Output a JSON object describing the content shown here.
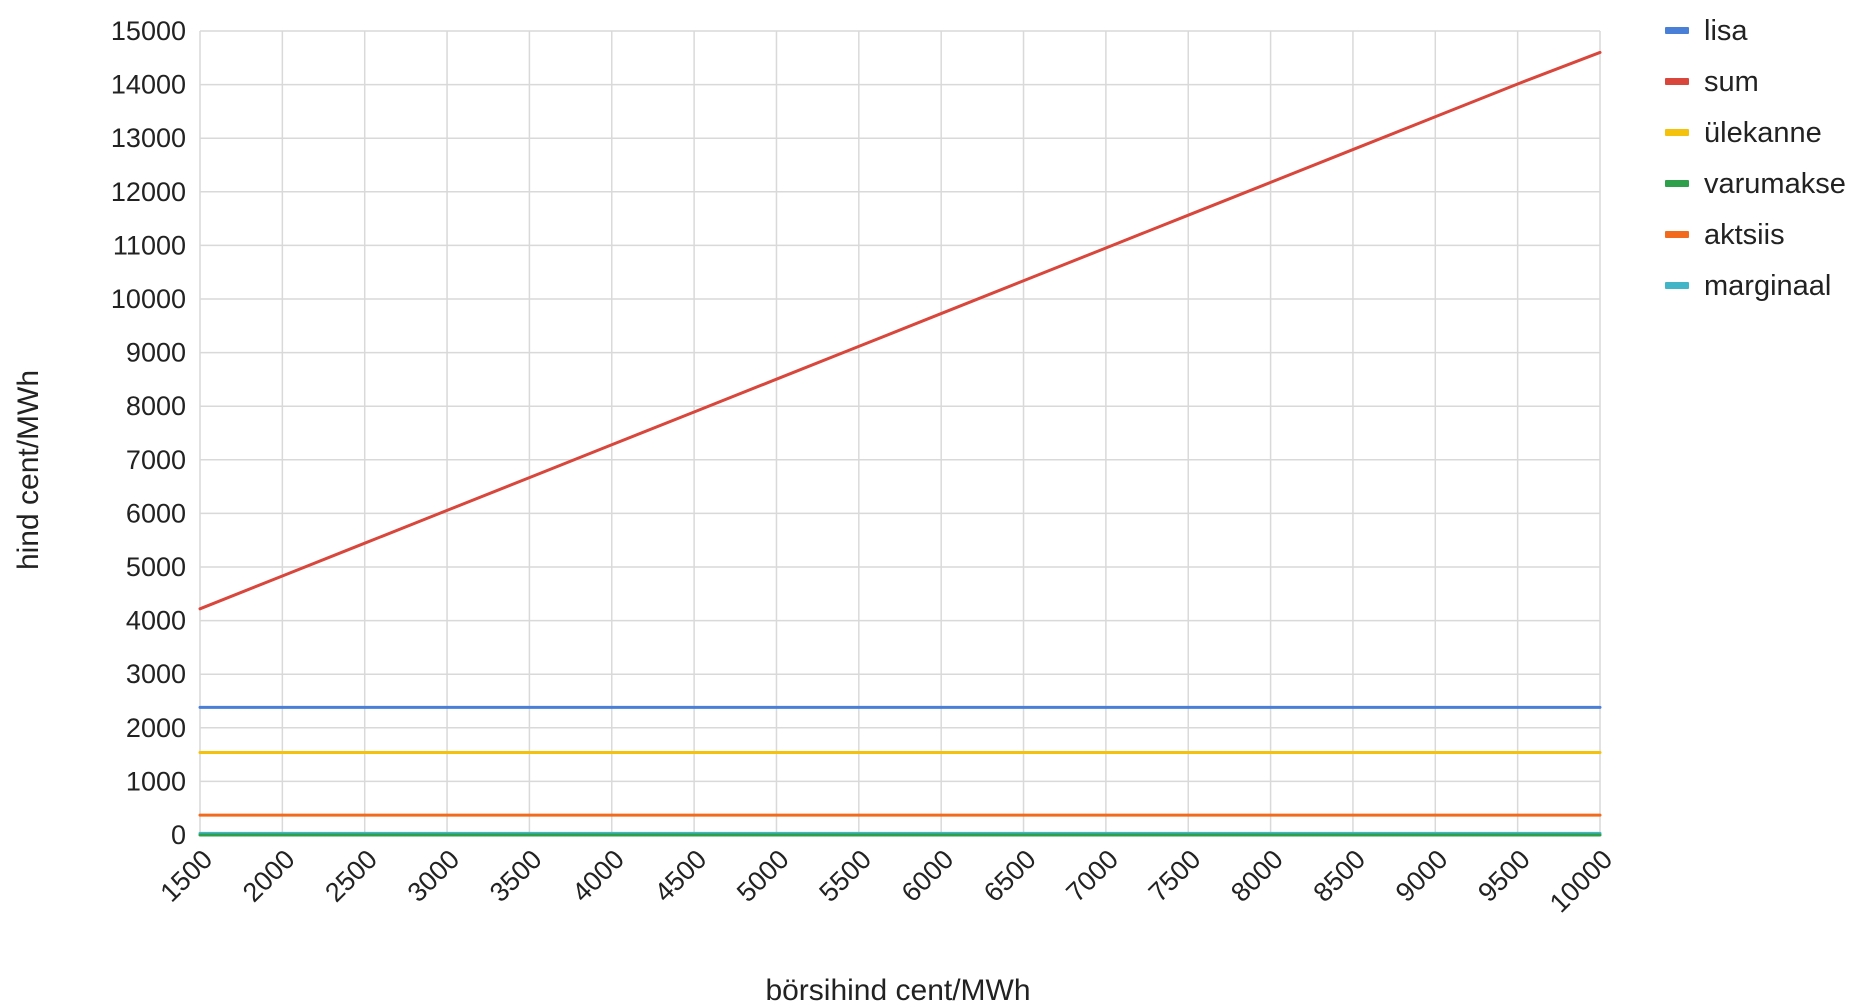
{
  "chart_data": {
    "type": "line",
    "title": "",
    "xlabel": "börsihind cent/MWh",
    "ylabel": "hind cent/MWh",
    "x": [
      1500,
      2000,
      2500,
      3000,
      3500,
      4000,
      4500,
      5000,
      5500,
      6000,
      6500,
      7000,
      7500,
      8000,
      8500,
      9000,
      9500,
      10000
    ],
    "x_ticks": [
      "1500",
      "2000",
      "2500",
      "3000",
      "3500",
      "4000",
      "4500",
      "5000",
      "5500",
      "6000",
      "6500",
      "7000",
      "7500",
      "8000",
      "8500",
      "9000",
      "9500",
      "10000"
    ],
    "y_ticks": [
      "0",
      "1000",
      "2000",
      "3000",
      "4000",
      "5000",
      "6000",
      "7000",
      "8000",
      "9000",
      "10000",
      "11000",
      "12000",
      "13000",
      "14000",
      "15000"
    ],
    "xlim": [
      1500,
      10000
    ],
    "ylim": [
      0,
      15000
    ],
    "grid": true,
    "legend_position": "right",
    "series": [
      {
        "name": "lisa",
        "color": "#4a7fd8",
        "values": [
          2380,
          2380,
          2380,
          2380,
          2380,
          2380,
          2380,
          2380,
          2380,
          2380,
          2380,
          2380,
          2380,
          2380,
          2380,
          2380,
          2380,
          2380
        ]
      },
      {
        "name": "sum",
        "color": "#d9463b",
        "values": [
          4220,
          4832,
          5444,
          6056,
          6668,
          7280,
          7892,
          8504,
          9116,
          9728,
          10340,
          10952,
          11564,
          12176,
          12788,
          13400,
          14012,
          14600
        ]
      },
      {
        "name": "ülekanne",
        "color": "#f4c20d",
        "values": [
          1540,
          1540,
          1540,
          1540,
          1540,
          1540,
          1540,
          1540,
          1540,
          1540,
          1540,
          1540,
          1540,
          1540,
          1540,
          1540,
          1540,
          1540
        ]
      },
      {
        "name": "varumakse",
        "color": "#2e9f4b",
        "values": [
          0,
          0,
          0,
          0,
          0,
          0,
          0,
          0,
          0,
          0,
          0,
          0,
          0,
          0,
          0,
          0,
          0,
          0
        ]
      },
      {
        "name": "aktsiis",
        "color": "#f26b1d",
        "values": [
          370,
          370,
          370,
          370,
          370,
          370,
          370,
          370,
          370,
          370,
          370,
          370,
          370,
          370,
          370,
          370,
          370,
          370
        ]
      },
      {
        "name": "marginaal",
        "color": "#42b6c7",
        "values": [
          30,
          30,
          30,
          30,
          30,
          30,
          30,
          30,
          30,
          30,
          30,
          30,
          30,
          30,
          30,
          30,
          30,
          30
        ]
      }
    ]
  }
}
